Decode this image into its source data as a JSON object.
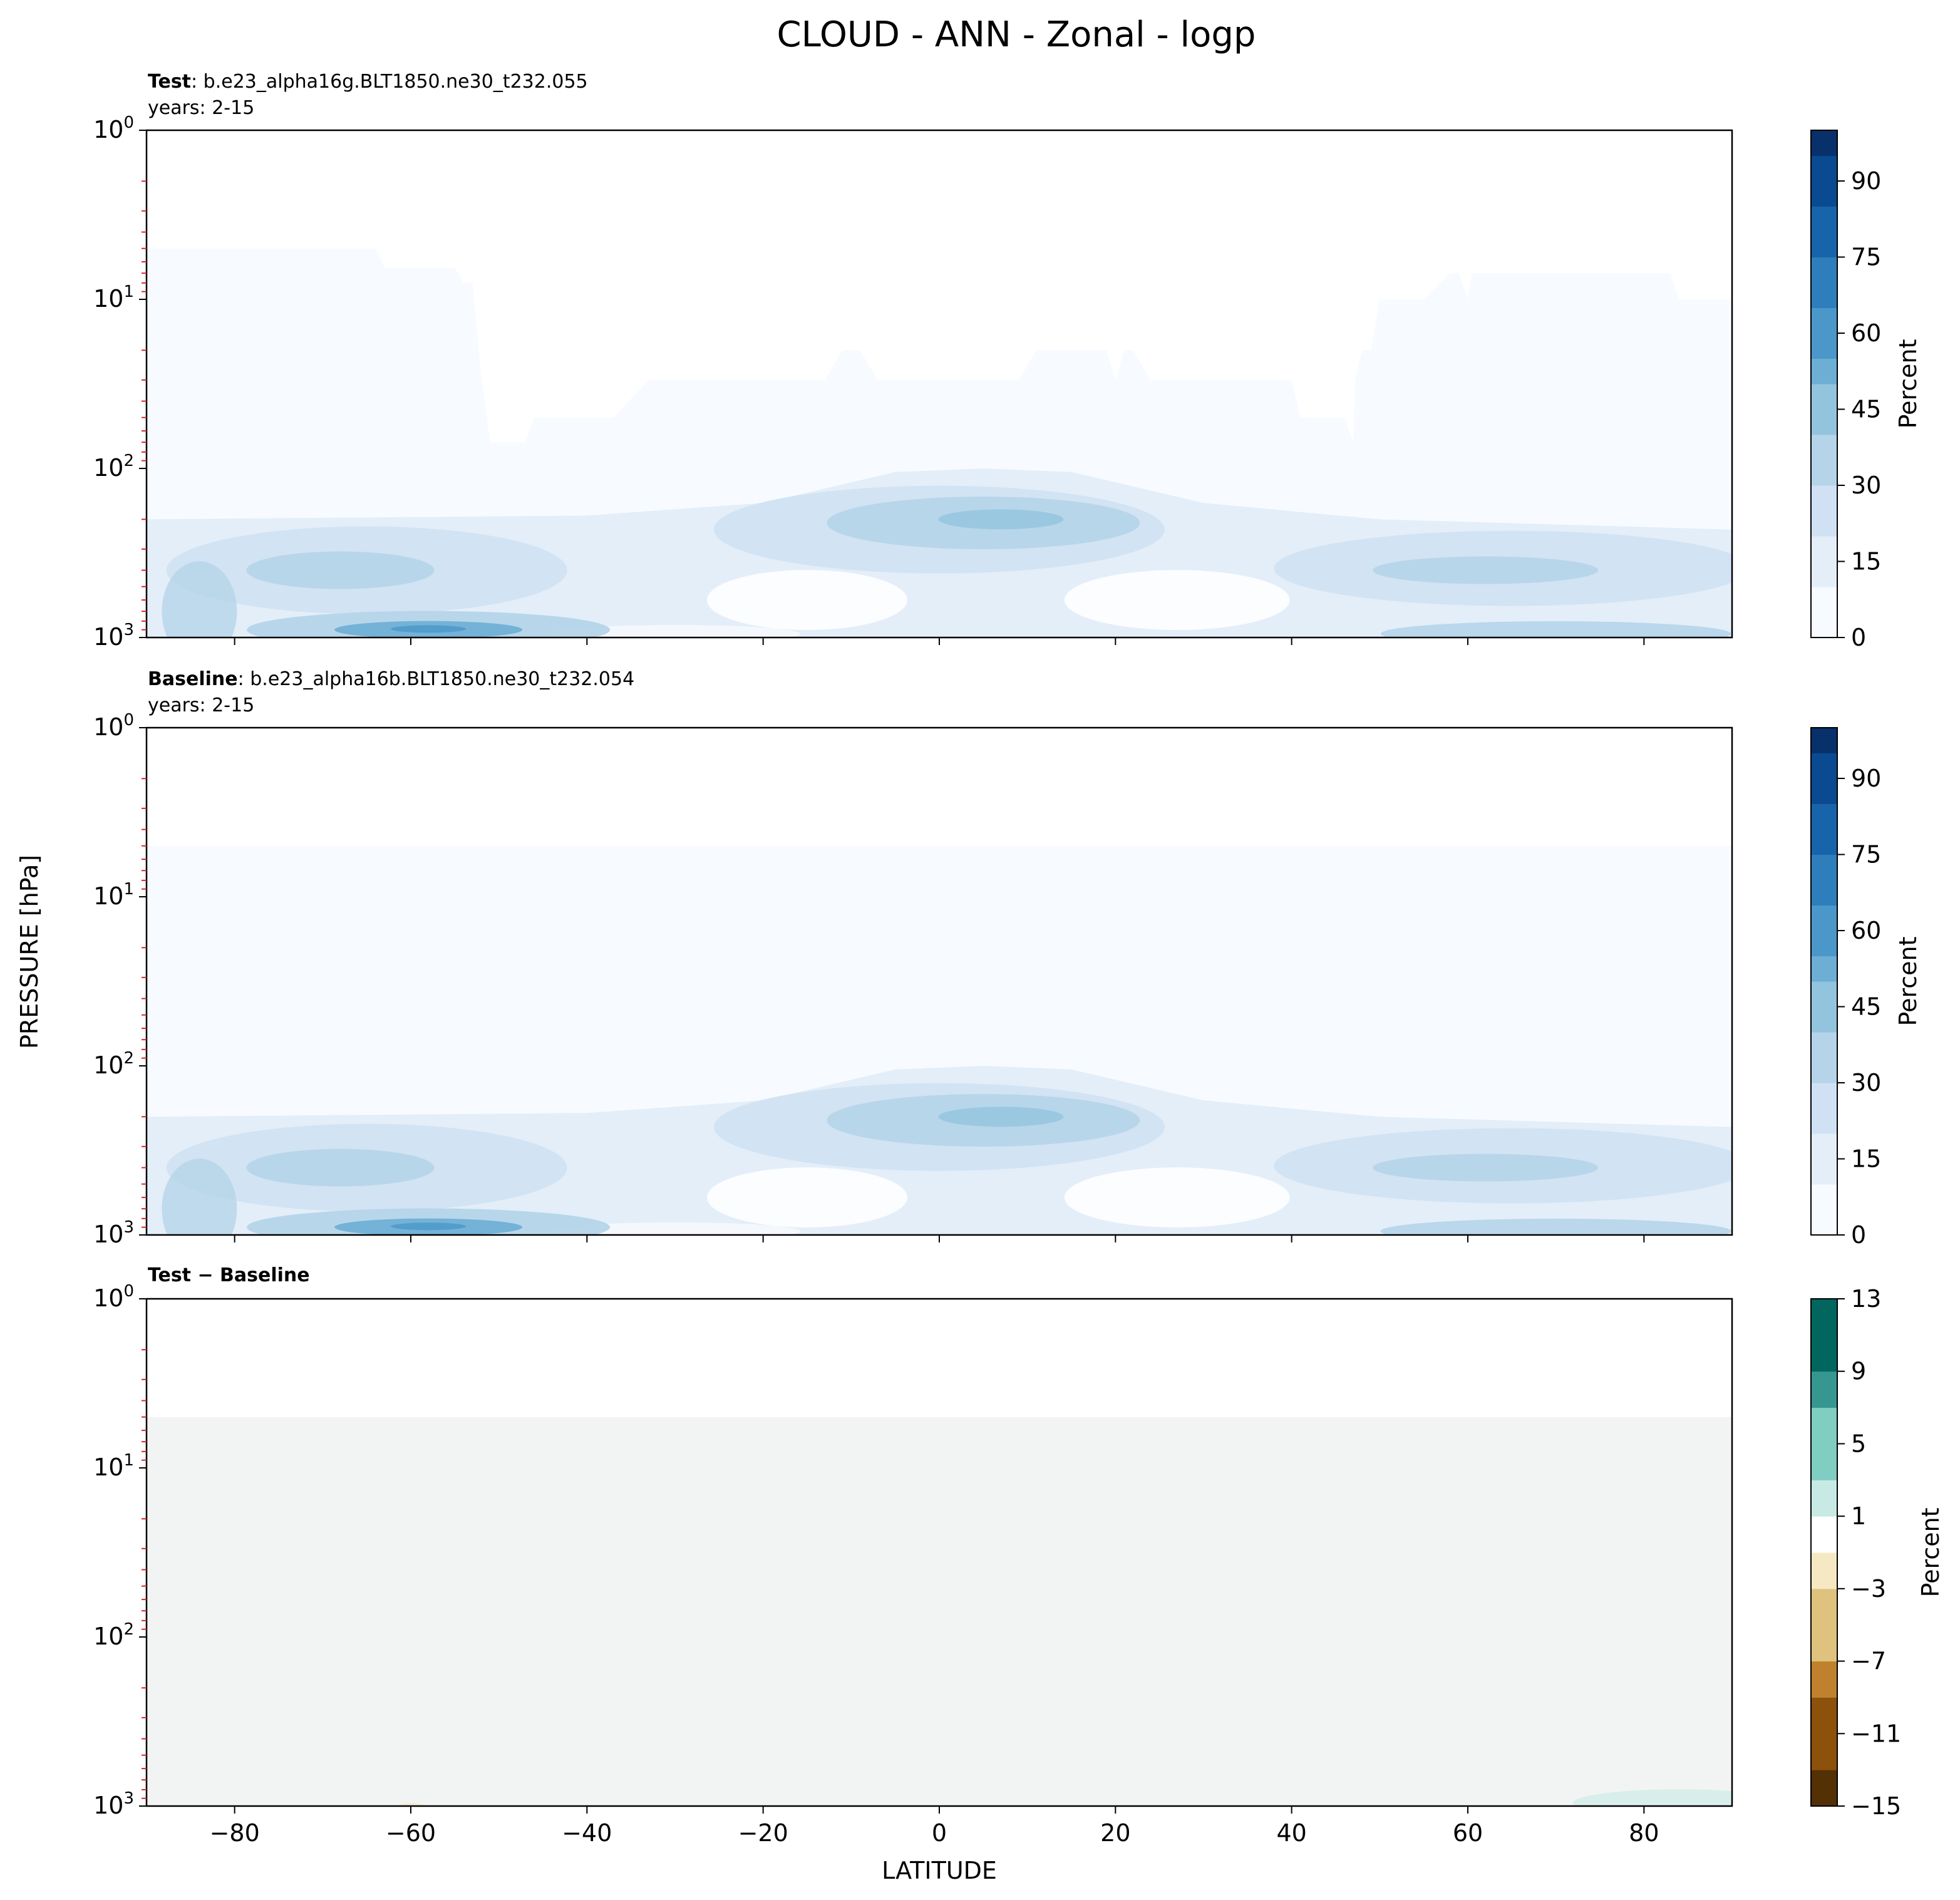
{
  "figure": {
    "title": "CLOUD - ANN - Zonal - logp",
    "ylabel": "PRESSURE [hPa]",
    "xlabel": "LATITUDE"
  },
  "chart_data": [
    {
      "type": "heatmap",
      "panel": "test",
      "label_bold": "Test",
      "case": ": b.e23_alpha16g.BLT1850.ne30_t232.055",
      "years": "years: 2-15",
      "x": [
        -90,
        90
      ],
      "xticks": [
        -80,
        -60,
        -40,
        -20,
        0,
        20,
        40,
        60,
        80
      ],
      "ylim_hPa": [
        1000,
        1
      ],
      "yscale": "log",
      "yticks_hPa": [
        1,
        10,
        100,
        1000
      ],
      "colormap": "Blues",
      "colorbar": {
        "label": "Percent",
        "range": [
          0,
          100
        ],
        "ticks": [
          0,
          15,
          30,
          45,
          60,
          75,
          90
        ]
      },
      "features": [
        {
          "lat_range": [
            -90,
            90
          ],
          "p_range_hPa": [
            5,
            200
          ],
          "value": 3,
          "note": "thin high-level cloud with jagged top"
        },
        {
          "lat_range": [
            -90,
            90
          ],
          "p_range_hPa": [
            200,
            1000
          ],
          "value": 20,
          "note": "tropospheric cloud band"
        },
        {
          "lat": 7,
          "p_hPa": 210,
          "value": 35,
          "note": "tropical upper max"
        },
        {
          "lat": -58,
          "p_hPa": 900,
          "value": 45,
          "note": "southern ocean low-cloud max"
        },
        {
          "lat": 62,
          "p_hPa": 400,
          "value": 30,
          "note": "northern midlatitude max"
        }
      ]
    },
    {
      "type": "heatmap",
      "panel": "baseline",
      "label_bold": "Baseline",
      "case": ": b.e23_alpha16b.BLT1850.ne30_t232.054",
      "years": "years: 2-15",
      "x": [
        -90,
        90
      ],
      "xticks": [
        -80,
        -60,
        -40,
        -20,
        0,
        20,
        40,
        60,
        80
      ],
      "ylim_hPa": [
        1000,
        1
      ],
      "yscale": "log",
      "yticks_hPa": [
        1,
        10,
        100,
        1000
      ],
      "colormap": "Blues",
      "colorbar": {
        "label": "Percent",
        "range": [
          0,
          100
        ],
        "ticks": [
          0,
          15,
          30,
          45,
          60,
          75,
          90
        ]
      },
      "features": [
        {
          "lat_range": [
            -90,
            90
          ],
          "p_range_hPa": [
            5,
            200
          ],
          "value": 3,
          "note": "thin high-level cloud, flat top"
        },
        {
          "lat_range": [
            -90,
            90
          ],
          "p_range_hPa": [
            200,
            1000
          ],
          "value": 20,
          "note": "tropospheric cloud band"
        },
        {
          "lat": 7,
          "p_hPa": 210,
          "value": 35,
          "note": "tropical upper max"
        },
        {
          "lat": -58,
          "p_hPa": 900,
          "value": 45,
          "note": "southern ocean low-cloud max"
        },
        {
          "lat": 62,
          "p_hPa": 400,
          "value": 30,
          "note": "northern midlatitude max"
        }
      ]
    },
    {
      "type": "heatmap",
      "panel": "difference",
      "label_bold": "Test − Baseline",
      "x": [
        -90,
        90
      ],
      "xticks": [
        -80,
        -60,
        -40,
        -20,
        0,
        20,
        40,
        60,
        80
      ],
      "ylim_hPa": [
        1000,
        1
      ],
      "yscale": "log",
      "yticks_hPa": [
        1,
        10,
        100,
        1000
      ],
      "colormap": "BrBG",
      "colorbar": {
        "label": "Percent",
        "range": [
          -15,
          13
        ],
        "ticks": [
          -15,
          -11,
          -7,
          -3,
          1,
          5,
          9,
          13
        ]
      },
      "features": [
        {
          "lat_range": [
            -90,
            90
          ],
          "p_range_hPa": [
            5,
            1000
          ],
          "value": 0,
          "note": "near-zero difference everywhere"
        },
        {
          "lat_range": [
            75,
            90
          ],
          "p_range_hPa": [
            850,
            1000
          ],
          "value": 2,
          "note": "small positive near surface, Arctic"
        }
      ]
    }
  ],
  "colors": {
    "blues": [
      "#f7fbff",
      "#e3eef9",
      "#cfe1f2",
      "#b5d4e9",
      "#93c4de",
      "#6daed5",
      "#4b97c9",
      "#2f7ebc",
      "#1864aa",
      "#0a4a90",
      "#08306b"
    ],
    "brbg": [
      "#543005",
      "#8c510a",
      "#bf812d",
      "#dfc27d",
      "#f6e8c3",
      "#ffffff",
      "#c7eae5",
      "#80cdc1",
      "#35978f",
      "#01665e",
      "#003c30"
    ],
    "neutral": "#f2f4f3",
    "minor_tick": "#d62728"
  }
}
